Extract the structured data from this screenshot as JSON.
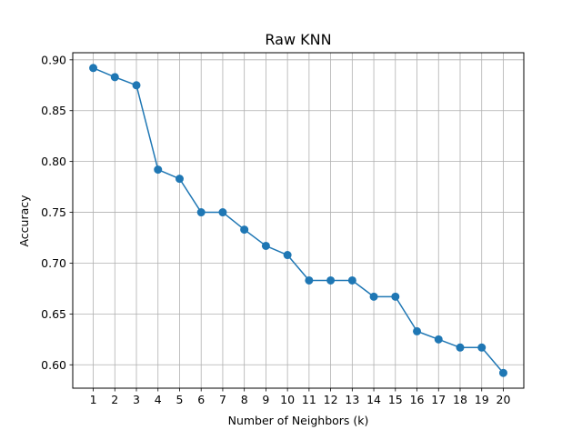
{
  "chart_data": {
    "type": "line",
    "title": "Raw KNN",
    "xlabel": "Number of Neighbors (k)",
    "ylabel": "Accuracy",
    "x": [
      1,
      2,
      3,
      4,
      5,
      6,
      7,
      8,
      9,
      10,
      11,
      12,
      13,
      14,
      15,
      16,
      17,
      18,
      19,
      20
    ],
    "series": [
      {
        "values": [
          0.892,
          0.883,
          0.875,
          0.792,
          0.783,
          0.75,
          0.75,
          0.733,
          0.717,
          0.708,
          0.683,
          0.683,
          0.683,
          0.667,
          0.667,
          0.633,
          0.625,
          0.617,
          0.617,
          0.592
        ],
        "color": "#1f77b4",
        "marker": "circle"
      }
    ],
    "xlim": [
      0.05,
      20.95
    ],
    "ylim": [
      0.577,
      0.907
    ],
    "xticks": [
      1,
      2,
      3,
      4,
      5,
      6,
      7,
      8,
      9,
      10,
      11,
      12,
      13,
      14,
      15,
      16,
      17,
      18,
      19,
      20
    ],
    "yticks": [
      "0.60",
      "0.65",
      "0.70",
      "0.75",
      "0.80",
      "0.85",
      "0.90"
    ],
    "grid": true,
    "grid_color": "#b0b0b0",
    "legend": false
  }
}
